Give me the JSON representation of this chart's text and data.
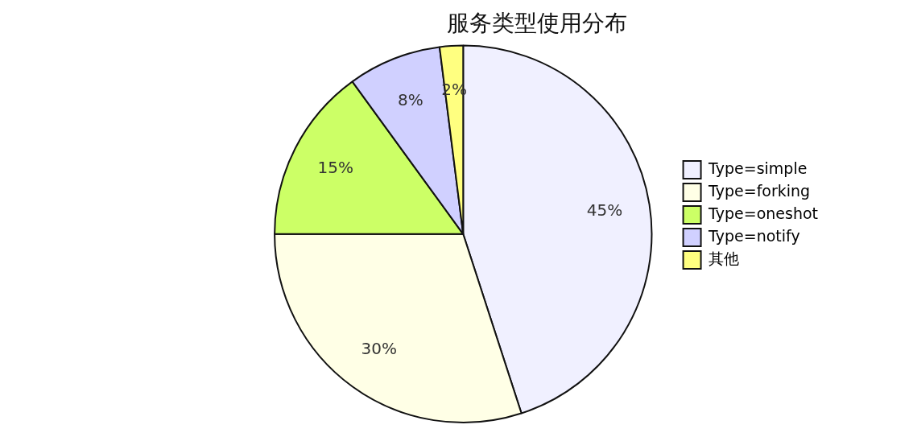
{
  "chart_data": {
    "type": "pie",
    "title": "服务类型使用分布",
    "categories": [
      "Type=simple",
      "Type=forking",
      "Type=oneshot",
      "Type=notify",
      "其他"
    ],
    "values": [
      45,
      30,
      15,
      8,
      2
    ],
    "value_labels": [
      "45%",
      "30%",
      "15%",
      "8%",
      "2%"
    ],
    "colors": [
      "#f0f0ff",
      "#ffffe6",
      "#ccff66",
      "#d0d0ff",
      "#ffff80"
    ],
    "legend": "right"
  }
}
